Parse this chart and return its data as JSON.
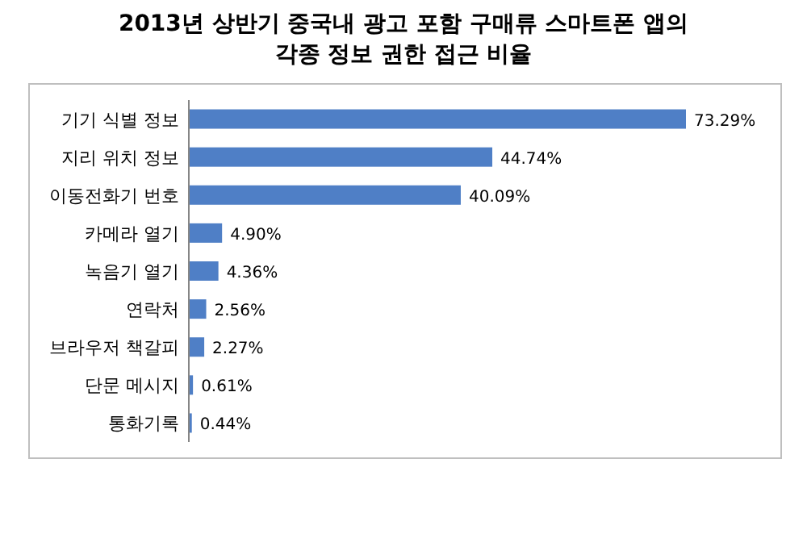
{
  "chart_data": {
    "type": "bar",
    "orientation": "horizontal",
    "title": "2013년 상반기 중국내 광고 포함 구매류 스마트폰 앱의\n각종 정보 권한 접근 비율",
    "categories": [
      "기기 식별 정보",
      "지리 위치 정보",
      "이동전화기 번호",
      "카메라 열기",
      "녹음기 열기",
      "연락처",
      "브라우저 책갈피",
      "단문 메시지",
      "통화기록"
    ],
    "values": [
      73.29,
      44.74,
      40.09,
      4.9,
      4.36,
      2.56,
      2.27,
      0.61,
      0.44
    ],
    "value_labels": [
      "73.29%",
      "44.74%",
      "40.09%",
      "4.90%",
      "4.36%",
      "2.56%",
      "2.27%",
      "0.61%",
      "0.44%"
    ],
    "color": "#4f7fc6"
  }
}
